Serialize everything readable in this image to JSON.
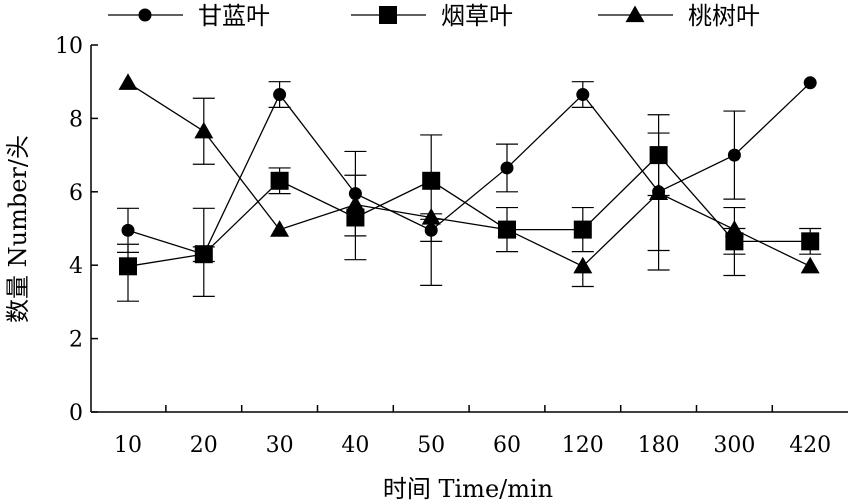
{
  "chart_data": {
    "type": "line",
    "categories": [
      "10",
      "20",
      "30",
      "40",
      "50",
      "60",
      "120",
      "180",
      "300",
      "420"
    ],
    "xlabel": "时间 Time/min",
    "ylabel": "数量 Number/头",
    "ylim": [
      0,
      10
    ],
    "yticks": [
      "0",
      "2",
      "4",
      "6",
      "8",
      "10"
    ],
    "grid": false,
    "legend_position": "top",
    "series": [
      {
        "name": "甘蓝叶",
        "marker": "circle",
        "values": [
          4.95,
          4.3,
          8.65,
          5.95,
          4.95,
          6.65,
          8.65,
          6.0,
          7.0,
          8.97
        ],
        "err_high": [
          0.6,
          0.2,
          0.35,
          1.15,
          0.3,
          0.65,
          0.35,
          1.6,
          1.2,
          0.0
        ],
        "err_low": [
          0.6,
          0.2,
          0.35,
          1.15,
          0.3,
          0.65,
          0.35,
          1.6,
          1.2,
          0.0
        ]
      },
      {
        "name": "烟草叶",
        "marker": "square",
        "values": [
          3.97,
          4.3,
          6.3,
          5.3,
          6.3,
          4.97,
          4.97,
          7.0,
          4.65,
          4.65
        ],
        "err_high": [
          0.6,
          1.25,
          0.35,
          1.15,
          1.25,
          0.6,
          0.6,
          1.1,
          0.35,
          0.35
        ],
        "err_low": [
          0.95,
          1.15,
          0.35,
          1.15,
          0.9,
          0.6,
          0.6,
          1.1,
          0.35,
          0.35
        ]
      },
      {
        "name": "桃树叶",
        "marker": "triangle",
        "values": [
          8.97,
          7.65,
          4.97,
          5.65,
          5.3,
          4.97,
          3.97,
          5.97,
          4.97,
          3.97
        ],
        "err_high": [
          0.0,
          0.9,
          0.0,
          0.0,
          0.0,
          0.0,
          0.0,
          0.0,
          0.6,
          0.0
        ],
        "err_low": [
          0.0,
          0.9,
          0.0,
          0.0,
          1.85,
          0.0,
          0.55,
          2.1,
          1.25,
          0.0
        ]
      }
    ]
  }
}
